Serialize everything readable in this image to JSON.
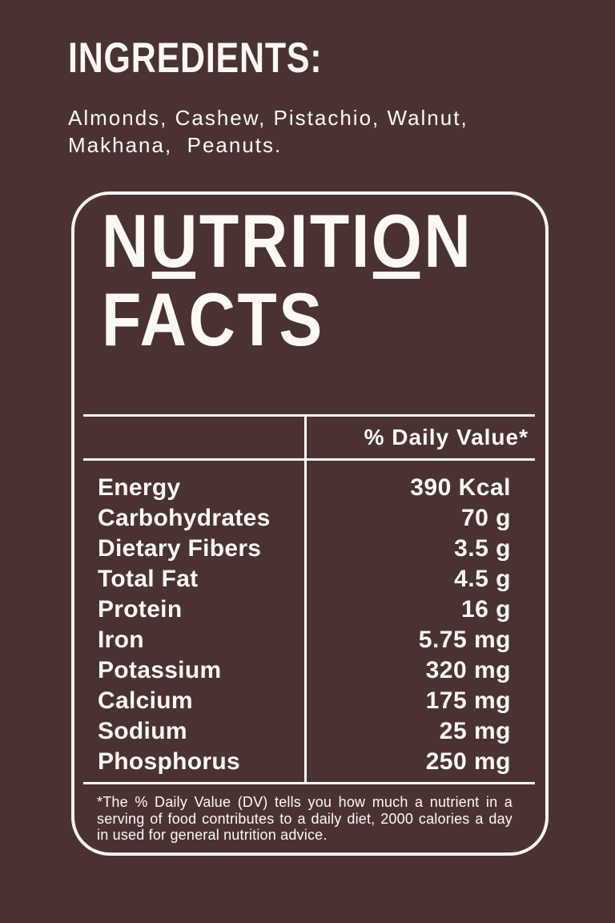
{
  "page": {
    "background_color": "#4a3233",
    "foreground_color": "#fcf9f5"
  },
  "ingredients": {
    "heading": "Ingredients:",
    "lines": [
      "Almonds, Cashew, Pistachio, Walnut,",
      "Makhana,  Peanuts."
    ]
  },
  "nutrition_label": {
    "title_line1": "Nutrition",
    "title_line2": "Facts",
    "header": {
      "value_column": "% Daily Value*"
    },
    "rows": [
      {
        "label": "Energy",
        "value": "390 Kcal"
      },
      {
        "label": "Carbohydrates",
        "value": "70 g"
      },
      {
        "label": "Dietary Fibers",
        "value": "3.5 g"
      },
      {
        "label": "Total Fat",
        "value": "4.5 g"
      },
      {
        "label": "Protein",
        "value": "16 g"
      },
      {
        "label": "Iron",
        "value": "5.75 mg"
      },
      {
        "label": "Potassium",
        "value": "320 mg"
      },
      {
        "label": "Calcium",
        "value": "175 mg"
      },
      {
        "label": "Sodium",
        "value": "25 mg"
      },
      {
        "label": "Phosphorus",
        "value": "250 mg"
      }
    ],
    "footnote_lines": [
      "*The % Daily Value (DV) tells you how much a nutrient in a",
      "serving of food contributes to a daily diet, 2000 calories a day",
      "in used for general nutrition advice."
    ]
  }
}
